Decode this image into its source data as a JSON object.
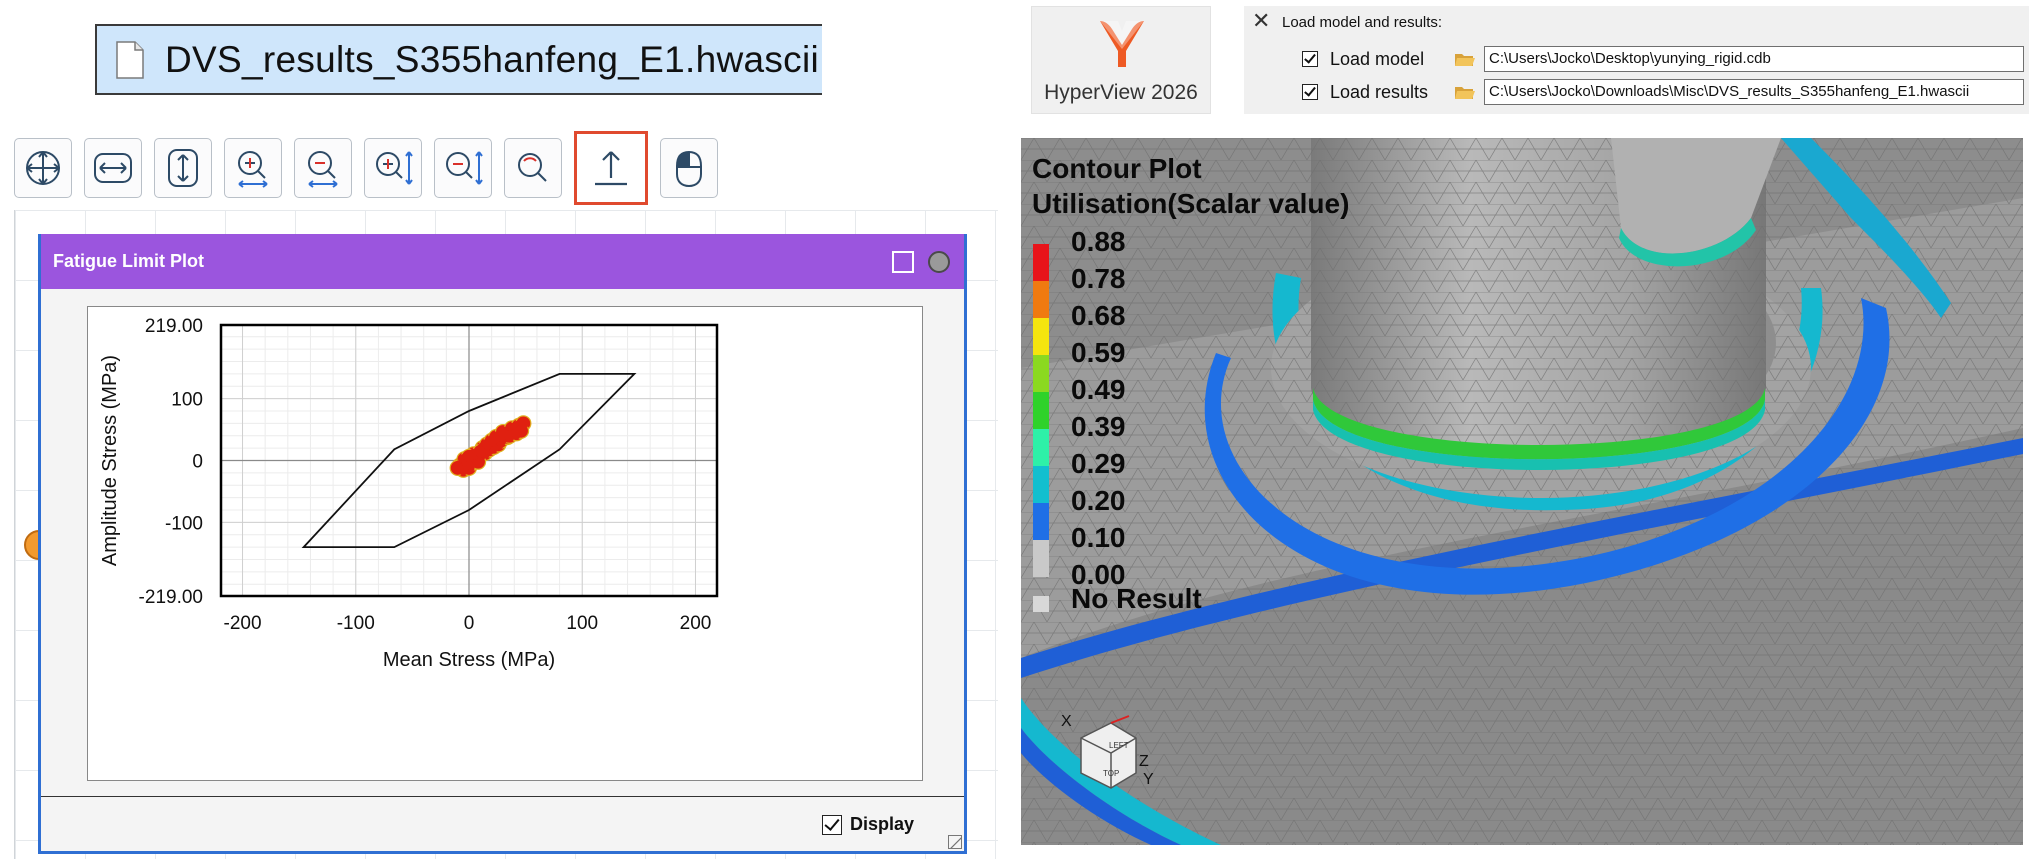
{
  "file_bar": {
    "file_name": "DVS_results_S355hanfeng_E1.hwascii"
  },
  "toolbar": {
    "buttons": [
      {
        "icon": "fit-all-icon"
      },
      {
        "icon": "fit-horizontal-icon"
      },
      {
        "icon": "fit-vertical-icon"
      },
      {
        "icon": "zoom-in-icon"
      },
      {
        "icon": "zoom-out-icon"
      },
      {
        "icon": "zoom-in-y-icon"
      },
      {
        "icon": "zoom-out-y-icon"
      },
      {
        "icon": "zoom-area-icon"
      },
      {
        "icon": "export-upload-icon",
        "active": true
      },
      {
        "icon": "mouse-icon"
      }
    ]
  },
  "fatigue_window": {
    "title": "Fatigue Limit Plot",
    "display_label": "Display",
    "display_checked": true
  },
  "chart_data": {
    "type": "scatter",
    "title": "",
    "xlabel": "Mean Stress (MPa)",
    "ylabel": "Amplitude Stress (MPa)",
    "xlim": [
      -219,
      219
    ],
    "ylim": [
      -219,
      219
    ],
    "x_ticks": [
      -200,
      -100,
      0,
      100,
      200
    ],
    "y_tick_labels": [
      "219.00",
      "100",
      "0",
      "-100",
      "-219.00"
    ],
    "y_tick_values": [
      219,
      100,
      0,
      -100,
      -219
    ],
    "grid": true,
    "limit_polygon": [
      [
        80,
        140
      ],
      [
        146,
        140
      ],
      [
        80,
        18
      ],
      [
        0,
        -80
      ],
      [
        -66,
        -140
      ],
      [
        -146,
        -140
      ],
      [
        -66,
        18
      ],
      [
        0,
        80
      ]
    ],
    "point_cloud": [
      [
        -8,
        -8
      ],
      [
        -5,
        -15
      ],
      [
        0,
        -12
      ],
      [
        -4,
        2
      ],
      [
        2,
        -4
      ],
      [
        6,
        4
      ],
      [
        10,
        8
      ],
      [
        14,
        12
      ],
      [
        18,
        18
      ],
      [
        22,
        22
      ],
      [
        26,
        26
      ],
      [
        28,
        32
      ],
      [
        34,
        38
      ],
      [
        12,
        20
      ],
      [
        16,
        26
      ],
      [
        20,
        32
      ],
      [
        24,
        38
      ],
      [
        30,
        46
      ],
      [
        38,
        52
      ],
      [
        44,
        56
      ],
      [
        48,
        60
      ],
      [
        8,
        -2
      ],
      [
        -2,
        -6
      ],
      [
        4,
        10
      ],
      [
        0,
        6
      ],
      [
        36,
        40
      ],
      [
        42,
        44
      ],
      [
        46,
        48
      ],
      [
        -10,
        -12
      ],
      [
        10,
        14
      ]
    ],
    "point_color": "#e02010",
    "edge_color": "#e0b020"
  },
  "app_logo": {
    "name": "HyperView 2026",
    "color": "#ee5a24"
  },
  "load_panel": {
    "title": "Load model and results:",
    "model_label": "Load model",
    "model_path": "C:\\Users\\Jocko\\Desktop\\yunying_rigid.cdb",
    "results_label": "Load results",
    "results_path": "C:\\Users\\Jocko\\Downloads\\Misc\\DVS_results_S355hanfeng_E1.hwascii"
  },
  "contour_legend": {
    "title_line1": "Contour Plot",
    "title_line2": "Utilisation(Scalar value)",
    "values": [
      "0.88",
      "0.78",
      "0.68",
      "0.59",
      "0.49",
      "0.39",
      "0.29",
      "0.20",
      "0.10",
      "0.00"
    ],
    "colors": [
      "#e8141a",
      "#f07a10",
      "#f5e50e",
      "#8bd920",
      "#2fd22a",
      "#2ef0a8",
      "#12bfcf",
      "#1f6fe6",
      "#c9c9c9"
    ],
    "no_result_label": "No Result"
  },
  "triad": {
    "x_label": "X",
    "y_label": "Y",
    "z_label": "Z",
    "top_label": "TOP",
    "left_label": "LEFT"
  }
}
